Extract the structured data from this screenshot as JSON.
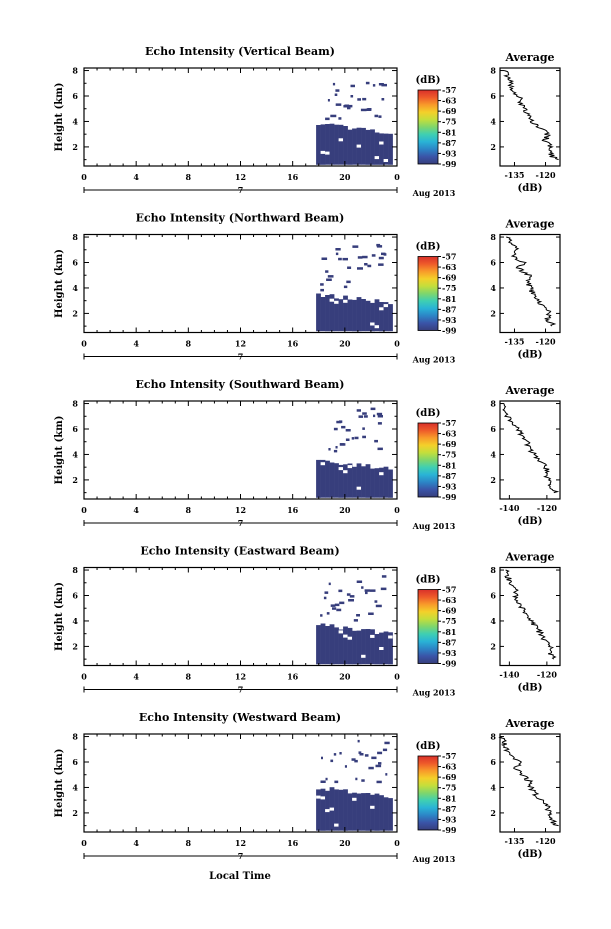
{
  "chart_data": [
    {
      "type": "heatmap",
      "title": "Echo Intensity (Vertical Beam)",
      "ylabel": "Height (km)",
      "x_ticks": [
        "0",
        "4",
        "8",
        "12",
        "16",
        "20",
        "0"
      ],
      "y_ticks": [
        "2",
        "4",
        "6",
        "8"
      ],
      "xlim": [
        0,
        24
      ],
      "ylim": [
        0.5,
        8.2
      ],
      "day_label": "7",
      "month_label": "Aug 2013",
      "colorbar": {
        "unit": "(dB)",
        "ticks": [
          "-57",
          "-63",
          "-69",
          "-75",
          "-81",
          "-87",
          "-93",
          "-99"
        ],
        "range": [
          -99,
          -57
        ]
      },
      "dense_echo": {
        "t_start": 17.8,
        "t_end": 23.4,
        "top_left": 3.9,
        "top_right": 3.0,
        "bottom": 0.6,
        "value": "-99"
      },
      "scattered_echo_top": 7.3,
      "average": {
        "title": "Average",
        "xlabel": "(dB)",
        "x_ticks": [
          "-135",
          "-120"
        ],
        "y_ticks": [
          "2",
          "4",
          "6",
          "8"
        ],
        "xlim": [
          -142,
          -113
        ],
        "ylim": [
          0.5,
          8.2
        ],
        "profile": {
          "height": [
            1.0,
            1.5,
            2.0,
            2.5,
            3.0,
            3.5,
            4.0,
            4.5,
            5.0,
            5.5,
            6.0,
            6.5,
            7.0,
            7.5,
            8.0
          ],
          "value": [
            -115,
            -118,
            -117,
            -120,
            -119,
            -123,
            -127,
            -128,
            -131,
            -132,
            -133,
            -137,
            -136,
            -138,
            -140
          ]
        }
      }
    },
    {
      "type": "heatmap",
      "title": "Echo Intensity (Northward Beam)",
      "ylabel": "Height (km)",
      "x_ticks": [
        "0",
        "4",
        "8",
        "12",
        "16",
        "20",
        "0"
      ],
      "y_ticks": [
        "2",
        "4",
        "6",
        "8"
      ],
      "xlim": [
        0,
        24
      ],
      "ylim": [
        0.5,
        8.2
      ],
      "day_label": "7",
      "month_label": "Aug 2013",
      "colorbar": {
        "unit": "(dB)",
        "ticks": [
          "-57",
          "-63",
          "-69",
          "-75",
          "-81",
          "-87",
          "-93",
          "-99"
        ],
        "range": [
          -99,
          -57
        ]
      },
      "dense_echo": {
        "t_start": 17.8,
        "t_end": 23.4,
        "top_left": 3.5,
        "top_right": 2.8,
        "bottom": 0.6,
        "value": "-99"
      },
      "scattered_echo_top": 7.5,
      "average": {
        "title": "Average",
        "xlabel": "(dB)",
        "x_ticks": [
          "-135",
          "-120"
        ],
        "y_ticks": [
          "2",
          "4",
          "6",
          "8"
        ],
        "xlim": [
          -142,
          -113
        ],
        "ylim": [
          0.5,
          8.2
        ],
        "profile": {
          "height": [
            1.0,
            1.5,
            2.0,
            2.5,
            3.0,
            3.5,
            4.0,
            4.5,
            5.0,
            5.5,
            6.0,
            6.5,
            7.0,
            7.5,
            8.0
          ],
          "value": [
            -116,
            -119,
            -118,
            -121,
            -123,
            -126,
            -127,
            -129,
            -128,
            -133,
            -131,
            -135,
            -133,
            -137,
            -139
          ]
        }
      }
    },
    {
      "type": "heatmap",
      "title": "Echo Intensity (Southward Beam)",
      "ylabel": "Height (km)",
      "x_ticks": [
        "0",
        "4",
        "8",
        "12",
        "16",
        "20",
        "0"
      ],
      "y_ticks": [
        "2",
        "4",
        "6",
        "8"
      ],
      "xlim": [
        0,
        24
      ],
      "ylim": [
        0.5,
        8.2
      ],
      "day_label": "7",
      "month_label": "Aug 2013",
      "colorbar": {
        "unit": "(dB)",
        "ticks": [
          "-57",
          "-63",
          "-69",
          "-75",
          "-81",
          "-87",
          "-93",
          "-99"
        ],
        "range": [
          -99,
          -57
        ]
      },
      "dense_echo": {
        "t_start": 17.8,
        "t_end": 23.4,
        "top_left": 3.5,
        "top_right": 2.9,
        "bottom": 0.6,
        "value": "-99"
      },
      "scattered_echo_top": 7.8,
      "average": {
        "title": "Average",
        "xlabel": "(dB)",
        "x_ticks": [
          "-140",
          "-120"
        ],
        "y_ticks": [
          "2",
          "4",
          "6",
          "8"
        ],
        "xlim": [
          -145,
          -113
        ],
        "ylim": [
          0.5,
          8.2
        ],
        "profile": {
          "height": [
            1.0,
            1.5,
            2.0,
            2.5,
            3.0,
            3.5,
            4.0,
            4.5,
            5.0,
            5.5,
            6.0,
            6.5,
            7.0,
            7.5,
            8.0
          ],
          "value": [
            -115,
            -118,
            -119,
            -121,
            -120,
            -124,
            -127,
            -129,
            -131,
            -133,
            -136,
            -138,
            -141,
            -142,
            -143
          ]
        }
      }
    },
    {
      "type": "heatmap",
      "title": "Echo Intensity (Eastward Beam)",
      "ylabel": "Height (km)",
      "x_ticks": [
        "0",
        "4",
        "8",
        "12",
        "16",
        "20",
        "0"
      ],
      "y_ticks": [
        "2",
        "4",
        "6",
        "8"
      ],
      "xlim": [
        0,
        24
      ],
      "ylim": [
        0.5,
        8.2
      ],
      "day_label": "7",
      "month_label": "Aug 2013",
      "colorbar": {
        "unit": "(dB)",
        "ticks": [
          "-57",
          "-63",
          "-69",
          "-75",
          "-81",
          "-87",
          "-93",
          "-99"
        ],
        "range": [
          -99,
          -57
        ]
      },
      "dense_echo": {
        "t_start": 17.8,
        "t_end": 23.4,
        "top_left": 3.7,
        "top_right": 3.0,
        "bottom": 0.6,
        "value": "-99"
      },
      "scattered_echo_top": 7.6,
      "average": {
        "title": "Average",
        "xlabel": "(dB)",
        "x_ticks": [
          "-140",
          "-120"
        ],
        "y_ticks": [
          "2",
          "4",
          "6",
          "8"
        ],
        "xlim": [
          -145,
          -113
        ],
        "ylim": [
          0.5,
          8.2
        ],
        "profile": {
          "height": [
            1.0,
            1.5,
            2.0,
            2.5,
            3.0,
            3.5,
            4.0,
            4.5,
            5.0,
            5.5,
            6.0,
            6.5,
            7.0,
            7.5,
            8.0
          ],
          "value": [
            -116,
            -119,
            -118,
            -121,
            -123,
            -126,
            -128,
            -130,
            -133,
            -135,
            -137,
            -136,
            -139,
            -141,
            -142
          ]
        }
      }
    },
    {
      "type": "heatmap",
      "title": "Echo Intensity (Westward Beam)",
      "ylabel": "Height (km)",
      "x_ticks": [
        "0",
        "4",
        "8",
        "12",
        "16",
        "20",
        "0"
      ],
      "y_ticks": [
        "2",
        "4",
        "6",
        "8"
      ],
      "xlim": [
        0,
        24
      ],
      "ylim": [
        0.5,
        8.2
      ],
      "day_label": "7",
      "month_label": "Aug 2013",
      "colorbar": {
        "unit": "(dB)",
        "ticks": [
          "-57",
          "-63",
          "-69",
          "-75",
          "-81",
          "-87",
          "-93",
          "-99"
        ],
        "range": [
          -99,
          -57
        ]
      },
      "dense_echo": {
        "t_start": 17.8,
        "t_end": 23.4,
        "top_left": 4.0,
        "top_right": 3.2,
        "bottom": 0.6,
        "value": "-99"
      },
      "scattered_echo_top": 8.0,
      "average": {
        "title": "Average",
        "xlabel": "(dB)",
        "x_ticks": [
          "-135",
          "-120"
        ],
        "y_ticks": [
          "2",
          "4",
          "6",
          "8"
        ],
        "xlim": [
          -142,
          -113
        ],
        "ylim": [
          0.5,
          8.2
        ],
        "profile": {
          "height": [
            1.0,
            1.5,
            2.0,
            2.5,
            3.0,
            3.5,
            4.0,
            4.5,
            5.0,
            5.5,
            6.0,
            6.5,
            7.0,
            7.5,
            8.0
          ],
          "value": [
            -115,
            -117,
            -119,
            -118,
            -122,
            -125,
            -127,
            -128,
            -131,
            -134,
            -133,
            -137,
            -139,
            -140,
            -141
          ]
        }
      }
    }
  ],
  "shared_xlabel": "Local Time",
  "colors": {
    "echo": "#373e7c",
    "axis": "#000000"
  },
  "colormap": [
    "#373e7c",
    "#3a54a8",
    "#2c85c6",
    "#29b3d6",
    "#3fcfb2",
    "#7fd66c",
    "#c4de3c",
    "#f4d02a",
    "#f89a2a",
    "#ee5a2a",
    "#d9302a"
  ]
}
